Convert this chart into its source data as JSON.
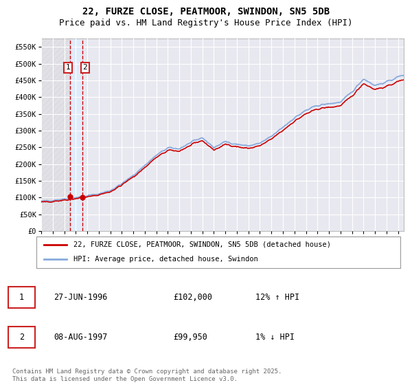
{
  "title": "22, FURZE CLOSE, PEATMOOR, SWINDON, SN5 5DB",
  "subtitle": "Price paid vs. HM Land Registry's House Price Index (HPI)",
  "ylim": [
    0,
    575000
  ],
  "yticks": [
    0,
    50000,
    100000,
    150000,
    200000,
    250000,
    300000,
    350000,
    400000,
    450000,
    500000,
    550000
  ],
  "ytick_labels": [
    "£0",
    "£50K",
    "£100K",
    "£150K",
    "£200K",
    "£250K",
    "£300K",
    "£350K",
    "£400K",
    "£450K",
    "£500K",
    "£550K"
  ],
  "legend_line1": "22, FURZE CLOSE, PEATMOOR, SWINDON, SN5 5DB (detached house)",
  "legend_line2": "HPI: Average price, detached house, Swindon",
  "transaction1_date": "27-JUN-1996",
  "transaction1_price": "£102,000",
  "transaction1_hpi": "12% ↑ HPI",
  "transaction2_date": "08-AUG-1997",
  "transaction2_price": "£99,950",
  "transaction2_hpi": "1% ↓ HPI",
  "footer": "Contains HM Land Registry data © Crown copyright and database right 2025.\nThis data is licensed under the Open Government Licence v3.0.",
  "line_color_property": "#cc0000",
  "line_color_hpi": "#88aadd",
  "vline_color": "#cc0000",
  "background_color": "#ffffff",
  "plot_bg_color": "#e8e8f0",
  "grid_color": "#ffffff",
  "title_fontsize": 10,
  "subtitle_fontsize": 9,
  "axis_fontsize": 7.5,
  "transaction_x1": 1996.49,
  "transaction_x2": 1997.6,
  "xmin": 1994.0,
  "xmax": 2025.5
}
